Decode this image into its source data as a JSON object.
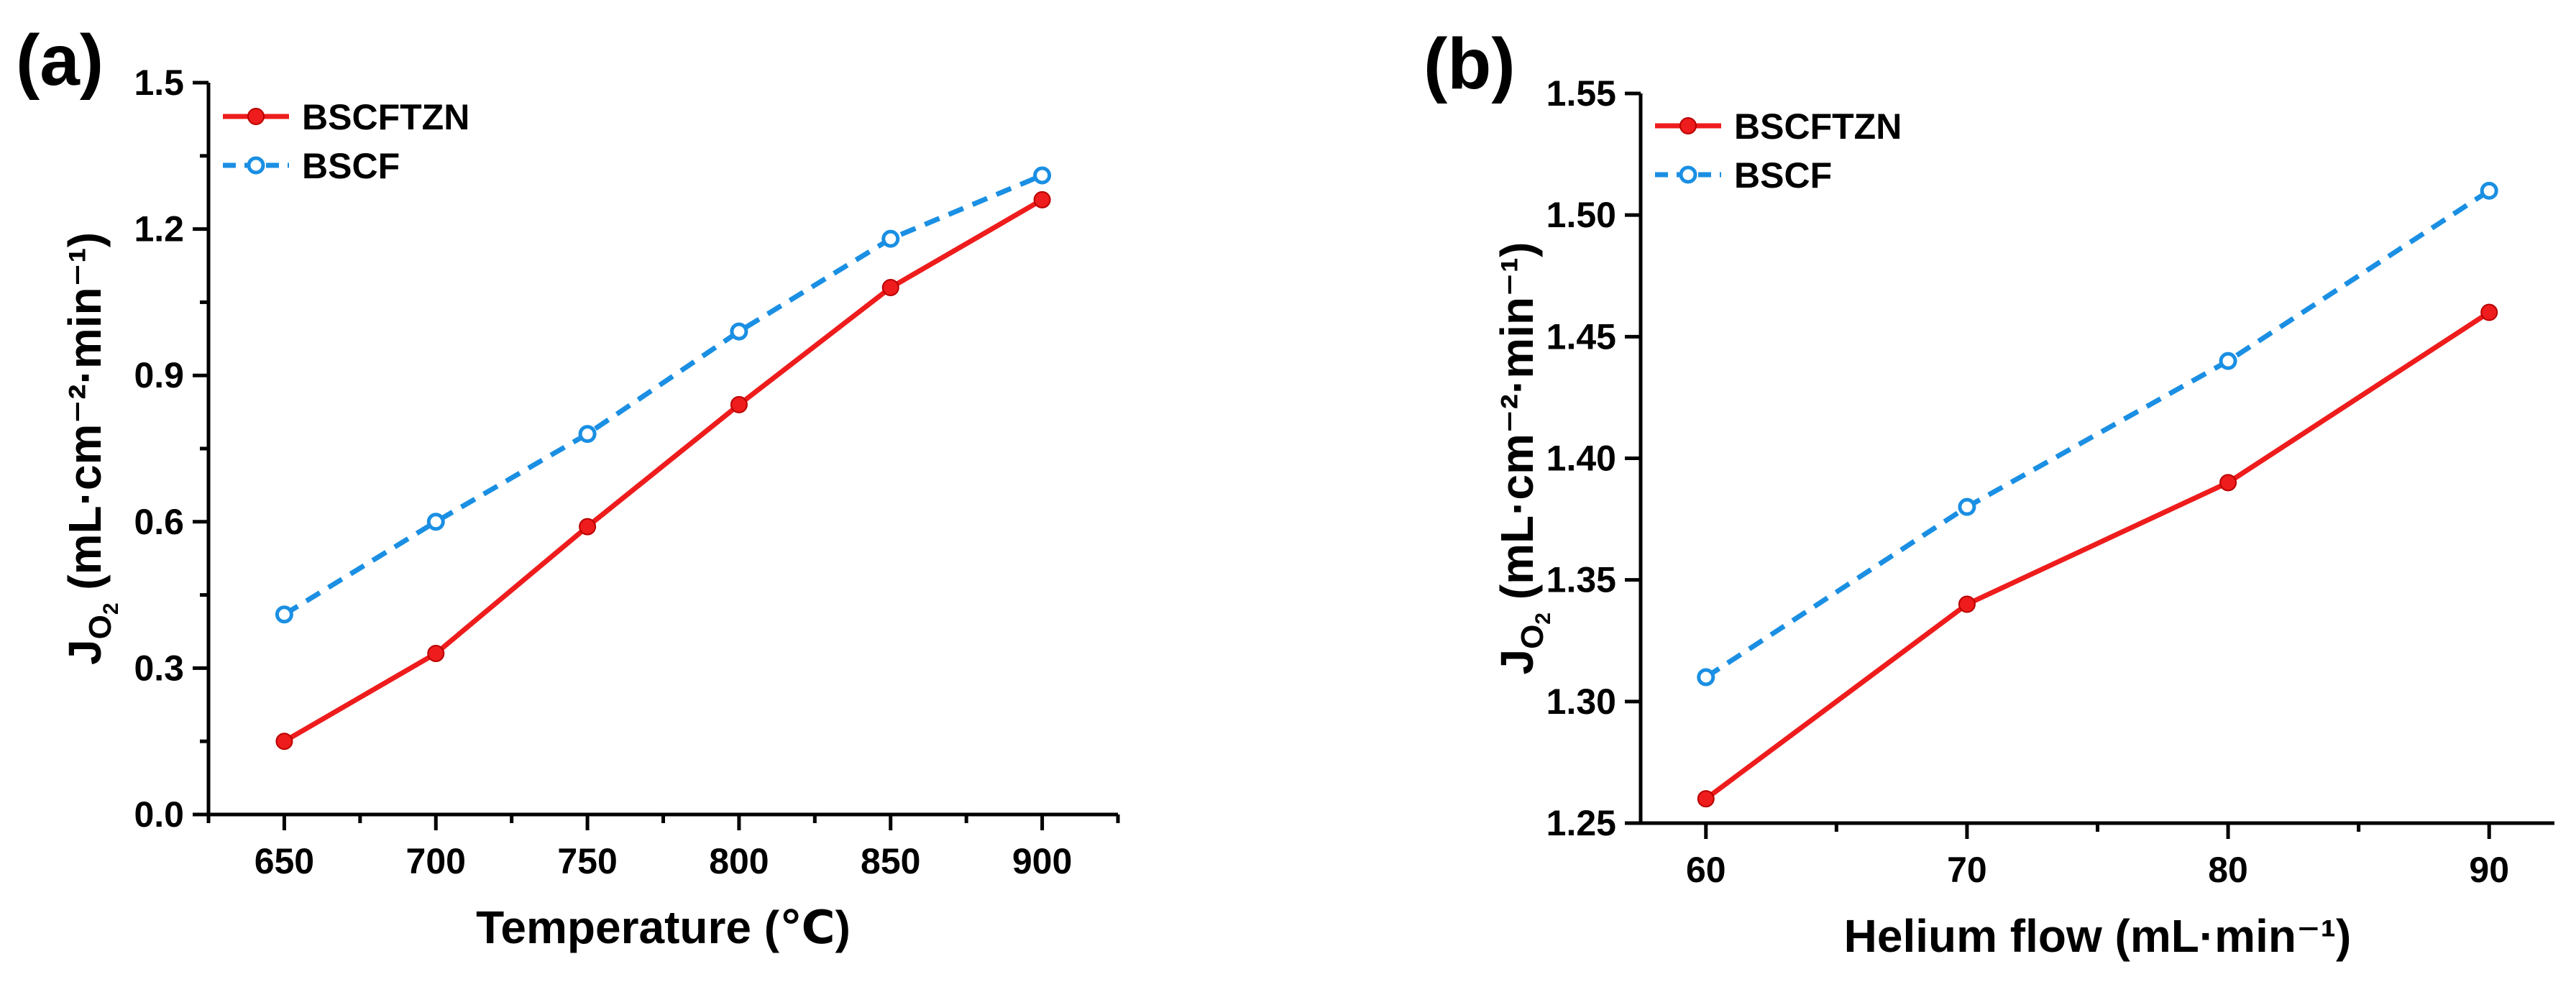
{
  "colors": {
    "bscftzn": "#ee1c1c",
    "bscf": "#1a8fe3",
    "axis": "#000000"
  },
  "chart_data": [
    {
      "panel_label": "(a)",
      "type": "line",
      "x": [
        650,
        700,
        750,
        800,
        850,
        900
      ],
      "xticks": [
        "650",
        "700",
        "750",
        "800",
        "850",
        "900"
      ],
      "yticks": [
        "0.0",
        "0.3",
        "0.6",
        "0.9",
        "1.2",
        "1.5"
      ],
      "xlim": [
        625,
        925
      ],
      "ylim": [
        0.0,
        1.5
      ],
      "xlabel": "Temperature (℃)",
      "ylabel_main": "J",
      "ylabel_sub": "O",
      "ylabel_subsub": "2",
      "ylabel_units": " (mL·cm⁻²·min⁻¹)",
      "legend_position": "top-left",
      "series": [
        {
          "name": "BSCFTZN",
          "style": "solid-filled",
          "color": "#ee1c1c",
          "values": [
            0.15,
            0.33,
            0.59,
            0.84,
            1.08,
            1.26
          ]
        },
        {
          "name": "BSCF",
          "style": "dashed-open",
          "color": "#1a8fe3",
          "values": [
            0.41,
            0.6,
            0.78,
            0.99,
            1.18,
            1.31
          ]
        }
      ]
    },
    {
      "panel_label": "(b)",
      "type": "line",
      "x": [
        60,
        70,
        80,
        90
      ],
      "xticks": [
        "60",
        "70",
        "80",
        "90"
      ],
      "yticks": [
        "1.25",
        "1.30",
        "1.35",
        "1.40",
        "1.45",
        "1.50",
        "1.55"
      ],
      "xlim": [
        57.5,
        92.5
      ],
      "ylim": [
        1.25,
        1.55
      ],
      "xlabel": "Helium flow (mL·min⁻¹)",
      "ylabel_main": "J",
      "ylabel_sub": "O",
      "ylabel_subsub": "2",
      "ylabel_units": " (mL·cm⁻²·min⁻¹)",
      "legend_position": "top-left",
      "series": [
        {
          "name": "BSCFTZN",
          "style": "solid-filled",
          "color": "#ee1c1c",
          "values": [
            1.26,
            1.34,
            1.39,
            1.46
          ]
        },
        {
          "name": "BSCF",
          "style": "dashed-open",
          "color": "#1a8fe3",
          "values": [
            1.31,
            1.38,
            1.44,
            1.51
          ]
        }
      ]
    }
  ]
}
